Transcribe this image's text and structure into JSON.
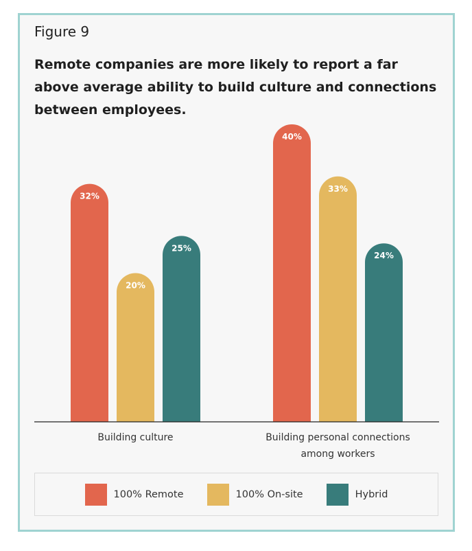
{
  "figure_label": "Figure 9",
  "chart_data": {
    "type": "bar",
    "title": "Remote companies are more likely to report a far above average ability to build culture and connections between employees.",
    "categories": [
      [
        "Building culture"
      ],
      [
        "Building personal connections",
        "among workers"
      ]
    ],
    "series": [
      {
        "name": "100% Remote",
        "color": "#e2664d",
        "values": [
          32,
          40
        ]
      },
      {
        "name": "100% On-site",
        "color": "#e4b85f",
        "values": [
          20,
          33
        ]
      },
      {
        "name": "Hybrid",
        "color": "#387c7b",
        "values": [
          25,
          24
        ]
      }
    ],
    "value_suffix": "%",
    "ylim": [
      0,
      40
    ],
    "grid": false,
    "legend_position": "bottom"
  }
}
